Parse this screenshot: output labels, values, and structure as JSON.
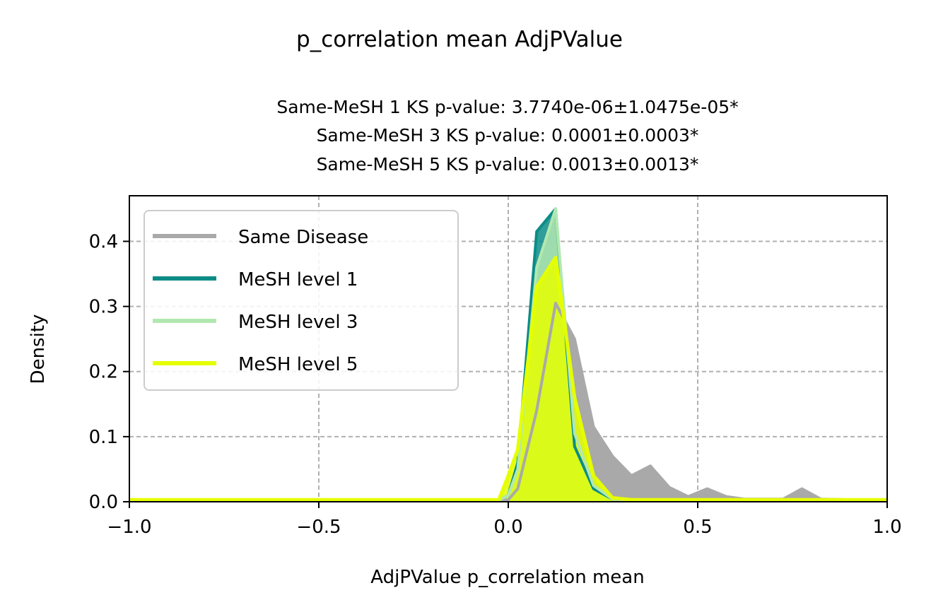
{
  "chart_data": {
    "type": "area",
    "title": "p_correlation mean AdjPValue",
    "subtitle_lines": [
      "Same-MeSH 1 KS p-value: 3.7740e-06±1.0475e-05*",
      "Same-MeSH 3 KS p-value: 0.0001±0.0003*",
      "Same-MeSH 5 KS p-value: 0.0013±0.0013*"
    ],
    "xlabel": "AdjPValue p_correlation mean",
    "ylabel": "Density",
    "xlim": [
      -1.0,
      1.0
    ],
    "ylim": [
      0.0,
      0.47
    ],
    "xticks": [
      -1.0,
      -0.5,
      0.0,
      0.5,
      1.0
    ],
    "xtick_labels": [
      "−1.0",
      "−0.5",
      "0.0",
      "0.5",
      "1.0"
    ],
    "yticks": [
      0.0,
      0.1,
      0.2,
      0.3,
      0.4
    ],
    "ytick_labels": [
      "0.0",
      "0.1",
      "0.2",
      "0.3",
      "0.4"
    ],
    "grid": true,
    "legend_position": "top-left",
    "x": [
      -1.0,
      -0.975,
      -0.025,
      0.0,
      0.025,
      0.075,
      0.125,
      0.175,
      0.225,
      0.275,
      0.325,
      0.375,
      0.425,
      0.475,
      0.525,
      0.575,
      0.625,
      0.675,
      0.725,
      0.775,
      0.825,
      1.0
    ],
    "series": [
      {
        "name": "Same Disease",
        "color": "#a9a9a9",
        "values": [
          0.002,
          0.002,
          0.002,
          0.003,
          0.02,
          0.14,
          0.305,
          0.25,
          0.115,
          0.07,
          0.04,
          0.055,
          0.022,
          0.008,
          0.02,
          0.008,
          0.004,
          0.004,
          0.004,
          0.02,
          0.004,
          0.002
        ]
      },
      {
        "name": "MeSH level 1",
        "color": "#0b8c87",
        "values": [
          0.002,
          0.002,
          0.002,
          0.01,
          0.06,
          0.415,
          0.45,
          0.085,
          0.02,
          0.004,
          0.002,
          0.002,
          0.002,
          0.002,
          0.002,
          0.002,
          0.002,
          0.002,
          0.002,
          0.002,
          0.002,
          0.002
        ]
      },
      {
        "name": "MeSH level 3",
        "color": "#b2e8b0",
        "values": [
          0.002,
          0.002,
          0.002,
          0.01,
          0.05,
          0.36,
          0.45,
          0.105,
          0.025,
          0.004,
          0.002,
          0.002,
          0.002,
          0.002,
          0.002,
          0.002,
          0.002,
          0.002,
          0.002,
          0.002,
          0.002,
          0.002
        ]
      },
      {
        "name": "MeSH level 5",
        "color": "#e5ff00",
        "values": [
          0.003,
          0.003,
          0.003,
          0.04,
          0.08,
          0.33,
          0.375,
          0.16,
          0.04,
          0.006,
          0.003,
          0.003,
          0.003,
          0.003,
          0.003,
          0.003,
          0.003,
          0.003,
          0.003,
          0.003,
          0.003,
          0.003
        ]
      }
    ]
  }
}
